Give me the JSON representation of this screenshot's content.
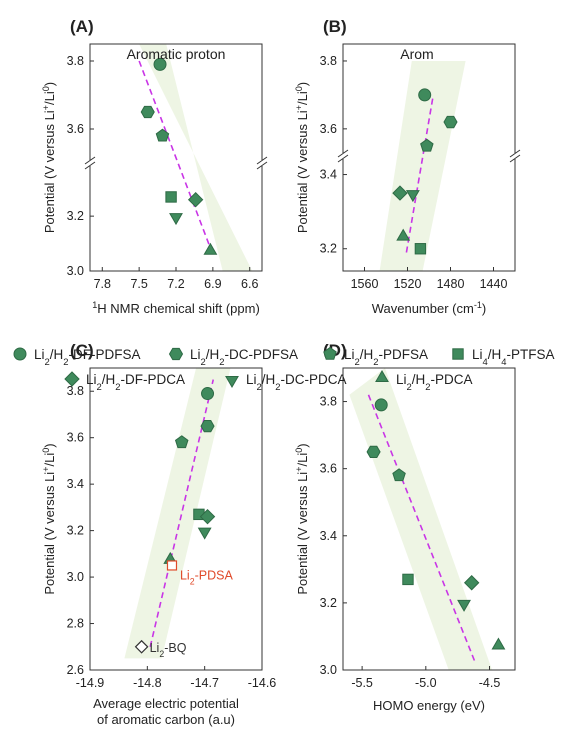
{
  "figure": {
    "legend": [
      {
        "label": "Li2/H2-DF-PDFSA",
        "main": "Li",
        "sub1": "2",
        "mid": "/H",
        "sub2": "2",
        "rest": "-DF-PDFSA",
        "marker": "circle"
      },
      {
        "label": "Li2/H2-DC-PDFSA",
        "main": "Li",
        "sub1": "2",
        "mid": "/H",
        "sub2": "2",
        "rest": "-DC-PDFSA",
        "marker": "hexagon"
      },
      {
        "label": "Li2/H2-PDFSA",
        "main": "Li",
        "sub1": "2",
        "mid": "/H",
        "sub2": "2",
        "rest": "-PDFSA",
        "marker": "pentagon"
      },
      {
        "label": "Li4/H4-PTFSA",
        "main": "Li",
        "sub1": "4",
        "mid": "/H",
        "sub2": "4",
        "rest": "-PTFSA",
        "marker": "square"
      },
      {
        "label": "Li2/H2-DF-PDCA",
        "main": "Li",
        "sub1": "2",
        "mid": "/H",
        "sub2": "2",
        "rest": "-DF-PDCA",
        "marker": "diamond"
      },
      {
        "label": "Li2/H2-DC-PDCA",
        "main": "Li",
        "sub1": "2",
        "mid": "/H",
        "sub2": "2",
        "rest": "-DC-PDCA",
        "marker": "triangle-down"
      },
      {
        "label": "Li2/H2-PDCA",
        "main": "Li",
        "sub1": "2",
        "mid": "/H",
        "sub2": "2",
        "rest": "-PDCA",
        "marker": "triangle-up"
      }
    ],
    "colors": {
      "marker_fill": "#3f8a5c",
      "marker_stroke": "#2e6a45",
      "fit_line": "#c935e6",
      "band": "#eef5e4",
      "highlight": "#e04a2a"
    }
  },
  "chart_data": [
    {
      "panel": "(A)",
      "type": "scatter",
      "title": "Aromatic proton",
      "xlabel": "H NMR chemical shift (ppm)",
      "xlabel_sup": "1",
      "ylabel": "Potential (V versus Li+/Li0)",
      "xlim": [
        7.9,
        6.5
      ],
      "x_reversed": true,
      "xticks": [
        "7.8",
        "7.5",
        "7.2",
        "6.9",
        "6.6"
      ],
      "yticks": [
        "3.0",
        "3.2",
        "3.6",
        "3.8"
      ],
      "axis_break": true,
      "points": [
        {
          "series": "Li2/H2-DF-PDFSA",
          "x": 7.33,
          "y": 3.79
        },
        {
          "series": "Li2/H2-DC-PDFSA",
          "x": 7.43,
          "y": 3.65
        },
        {
          "series": "Li2/H2-PDFSA",
          "x": 7.31,
          "y": 3.58
        },
        {
          "series": "Li4/H4-PTFSA",
          "x": 7.24,
          "y": 3.27
        },
        {
          "series": "Li2/H2-DF-PDCA",
          "x": 7.04,
          "y": 3.26
        },
        {
          "series": "Li2/H2-DC-PDCA",
          "x": 7.2,
          "y": 3.2
        },
        {
          "series": "Li2/H2-PDCA",
          "x": 6.92,
          "y": 3.07
        }
      ],
      "fit": [
        [
          7.5,
          3.8
        ],
        [
          6.9,
          3.06
        ]
      ]
    },
    {
      "panel": "(B)",
      "type": "scatter",
      "title": "Arom",
      "xlabel": "Wavenumber (cm-1)",
      "xlabel_sup": "-1",
      "ylabel": "Potential (V versus Li+/Li0)",
      "xlim": [
        1580,
        1420
      ],
      "x_reversed": true,
      "xticks": [
        "1560",
        "1520",
        "1480",
        "1440"
      ],
      "yticks": [
        "3.2",
        "3.4",
        "3.6",
        "3.8"
      ],
      "axis_break": true,
      "points": [
        {
          "series": "Li2/H2-DF-PDFSA",
          "x": 1504,
          "y": 3.7
        },
        {
          "series": "Li2/H2-DC-PDFSA",
          "x": 1480,
          "y": 3.62
        },
        {
          "series": "Li2/H2-PDFSA",
          "x": 1502,
          "y": 3.55
        },
        {
          "series": "Li4/H4-PTFSA",
          "x": 1508,
          "y": 3.2
        },
        {
          "series": "Li2/H2-DF-PDCA",
          "x": 1527,
          "y": 3.35
        },
        {
          "series": "Li2/H2-DC-PDCA",
          "x": 1515,
          "y": 3.35
        },
        {
          "series": "Li2/H2-PDCA",
          "x": 1524,
          "y": 3.23
        }
      ],
      "fit": [
        [
          1521,
          3.19
        ],
        [
          1496,
          3.7
        ]
      ]
    },
    {
      "panel": "(C)",
      "type": "scatter",
      "title": "",
      "xlabel": "Average electric potential",
      "xlabel2": "of aromatic carbon (a.u)",
      "ylabel": "Potential (V versus Li+/Li0)",
      "xlim": [
        -14.9,
        -14.6
      ],
      "ylim": [
        2.6,
        3.9
      ],
      "xticks": [
        "-14.9",
        "-14.8",
        "-14.7",
        "-14.6"
      ],
      "yticks": [
        "2.6",
        "2.8",
        "3.0",
        "3.2",
        "3.4",
        "3.6",
        "3.8"
      ],
      "points": [
        {
          "series": "Li2/H2-DF-PDFSA",
          "x": -14.695,
          "y": 3.79
        },
        {
          "series": "Li2/H2-DC-PDFSA",
          "x": -14.695,
          "y": 3.65
        },
        {
          "series": "Li2/H2-PDFSA",
          "x": -14.74,
          "y": 3.58
        },
        {
          "series": "Li4/H4-PTFSA",
          "x": -14.71,
          "y": 3.27
        },
        {
          "series": "Li2/H2-DF-PDCA",
          "x": -14.695,
          "y": 3.26
        },
        {
          "series": "Li2/H2-DC-PDCA",
          "x": -14.7,
          "y": 3.2
        },
        {
          "series": "Li2/H2-PDCA",
          "x": -14.76,
          "y": 3.07
        }
      ],
      "extra_points": [
        {
          "label": "Li2-PDSA",
          "main": "Li",
          "sub": "2",
          "rest": "-PDSA",
          "x": -14.757,
          "y": 3.05,
          "marker": "open-square",
          "color": "#e04a2a"
        },
        {
          "label": "Li2-BQ",
          "main": "Li",
          "sub": "2",
          "rest": "-BQ",
          "x": -14.81,
          "y": 2.7,
          "marker": "open-diamond",
          "color": "#333333"
        }
      ],
      "fit": [
        [
          -14.795,
          2.7
        ],
        [
          -14.685,
          3.85
        ]
      ]
    },
    {
      "panel": "(D)",
      "type": "scatter",
      "title": "",
      "xlabel": "HOMO energy (eV)",
      "ylabel": "Potential (V versus Li+/Li0)",
      "xlim": [
        -5.65,
        -4.3
      ],
      "ylim": [
        3.0,
        3.9
      ],
      "xticks": [
        "-5.5",
        "-5.0",
        "-4.5"
      ],
      "yticks": [
        "3.0",
        "3.2",
        "3.4",
        "3.6",
        "3.8"
      ],
      "points": [
        {
          "series": "Li2/H2-DF-PDFSA",
          "x": -5.35,
          "y": 3.79
        },
        {
          "series": "Li2/H2-DC-PDFSA",
          "x": -5.41,
          "y": 3.65
        },
        {
          "series": "Li2/H2-PDFSA",
          "x": -5.21,
          "y": 3.58
        },
        {
          "series": "Li4/H4-PTFSA",
          "x": -5.14,
          "y": 3.27
        },
        {
          "series": "Li2/H2-DF-PDCA",
          "x": -4.64,
          "y": 3.26
        },
        {
          "series": "Li2/H2-DC-PDCA",
          "x": -4.7,
          "y": 3.2
        },
        {
          "series": "Li2/H2-PDCA",
          "x": -4.43,
          "y": 3.07
        }
      ],
      "fit": [
        [
          -5.45,
          3.82
        ],
        [
          -4.61,
          3.02
        ]
      ]
    }
  ]
}
